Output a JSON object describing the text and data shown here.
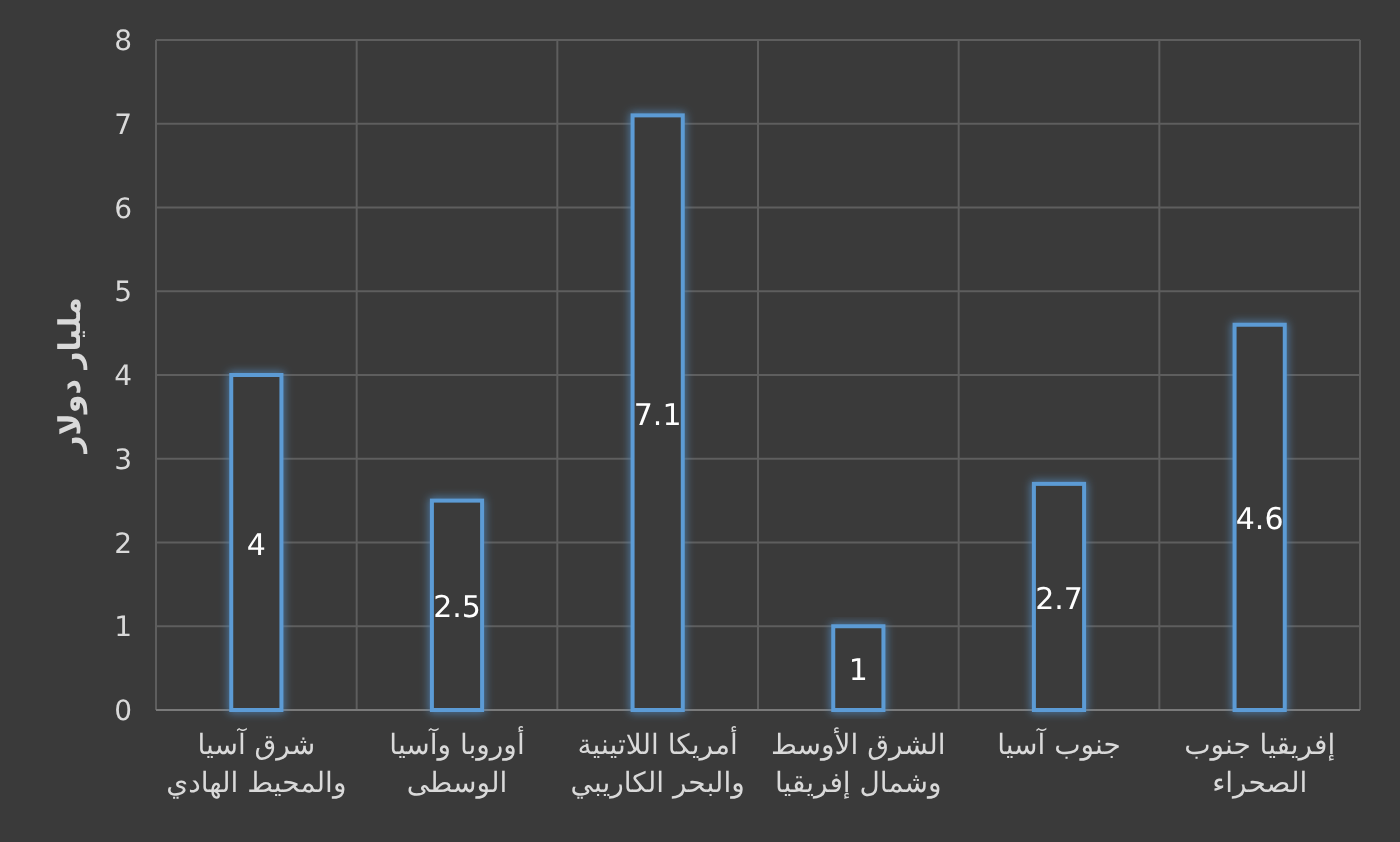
{
  "chart_data": {
    "type": "bar",
    "ylabel": "مليار دولار",
    "categories": [
      "شرق آسيا والمحيط الهادي",
      "أوروبا وآسيا الوسطى",
      "أمريكا اللاتينية والبحر الكاريبي",
      "الشرق الأوسط وشمال إفريقيا",
      "جنوب آسيا",
      "إفريقيا جنوب الصحراء"
    ],
    "values": [
      4,
      2.5,
      7.1,
      1,
      2.7,
      4.6
    ],
    "color": "#5b9bd5",
    "ylim": [
      0,
      8
    ],
    "yticks": [
      0,
      1,
      2,
      3,
      4,
      5,
      6,
      7,
      8
    ],
    "grid": true,
    "data_labels": true
  }
}
